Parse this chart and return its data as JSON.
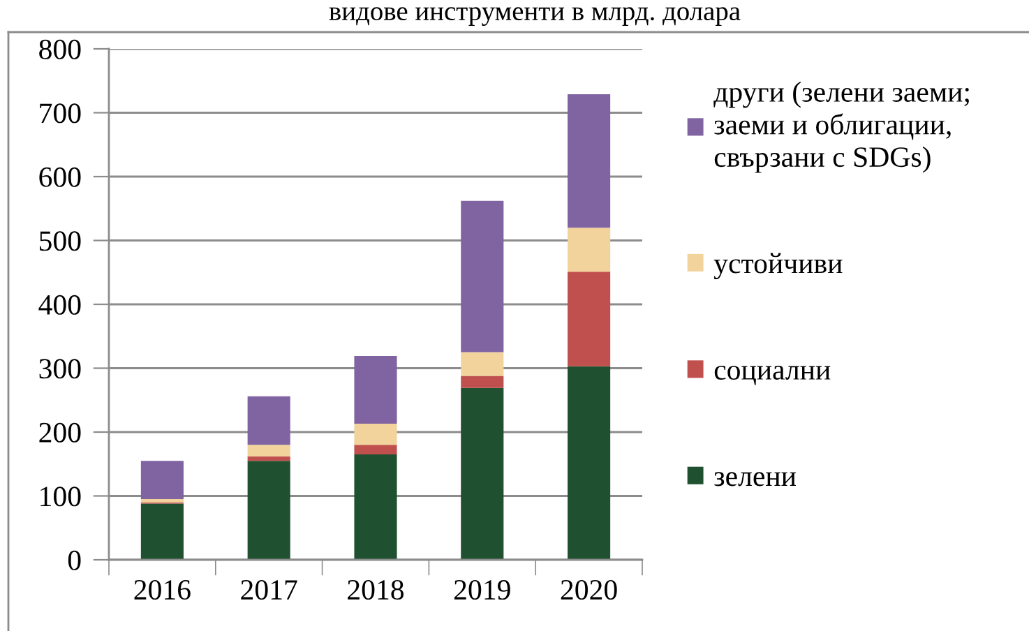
{
  "chart_data": {
    "type": "bar",
    "title": "видове инструменти в млрд. долара",
    "categories": [
      "2016",
      "2017",
      "2018",
      "2019",
      "2020"
    ],
    "stacked": true,
    "series": [
      {
        "name": "зелени",
        "color": "#1f5130",
        "values": [
          88,
          155,
          165,
          269,
          303
        ]
      },
      {
        "name": "социални",
        "color": "#c0504d",
        "values": [
          2,
          7,
          15,
          19,
          148
        ]
      },
      {
        "name": "устойчиви",
        "color": "#f2d39b",
        "values": [
          5,
          18,
          33,
          37,
          69
        ]
      },
      {
        "name": "други (зелени заеми;\nзаеми и облигации,\nсвързани с SDGs)",
        "color": "#8064a2",
        "values": [
          60,
          76,
          106,
          237,
          209
        ]
      }
    ],
    "ylim": [
      0,
      800
    ],
    "yticks": [
      0,
      100,
      200,
      300,
      400,
      500,
      600,
      700,
      800
    ],
    "grid": "y",
    "legend": "right"
  }
}
